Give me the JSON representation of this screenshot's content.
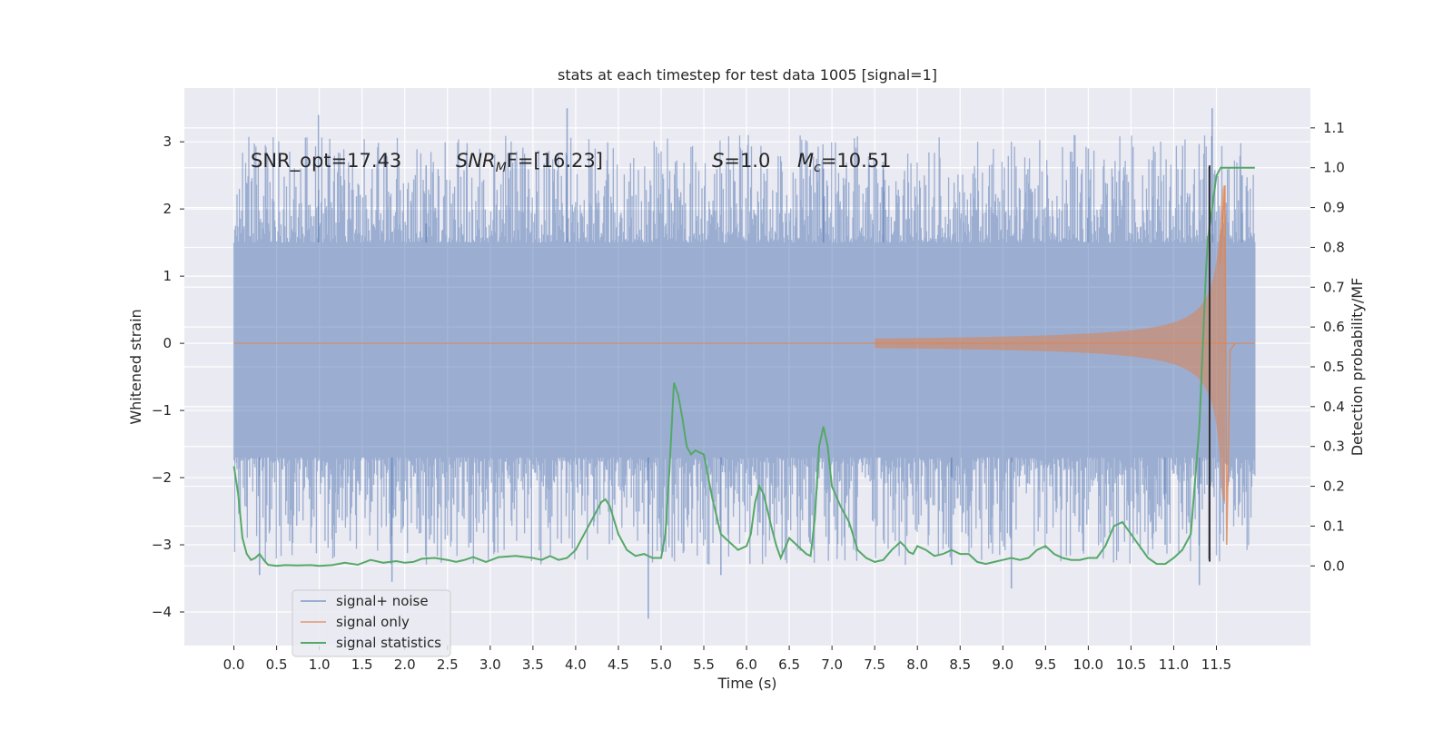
{
  "chart_data": {
    "type": "line",
    "title": "stats at each timestep for test data 1005 [signal=1]",
    "xlabel": "Time (s)",
    "ylabel": "Whitened strain",
    "ylabel_right": "Detection probability/MF",
    "xlim": [
      -0.58,
      12.6
    ],
    "ylim": [
      -4.5,
      3.8
    ],
    "ylim_right": [
      -0.2,
      1.2
    ],
    "x_ticks": [
      "0.0",
      "0.5",
      "1.0",
      "1.5",
      "2.0",
      "2.5",
      "3.0",
      "3.5",
      "4.0",
      "4.5",
      "5.0",
      "5.5",
      "6.0",
      "6.5",
      "7.0",
      "7.5",
      "8.0",
      "8.5",
      "9.0",
      "9.5",
      "10.0",
      "10.5",
      "11.0",
      "11.5"
    ],
    "y_ticks_left": [
      "−4",
      "−3",
      "−2",
      "−1",
      "0",
      "1",
      "2",
      "3"
    ],
    "y_ticks_right": [
      "0.0",
      "0.1",
      "0.2",
      "0.3",
      "0.4",
      "0.5",
      "0.6",
      "0.7",
      "0.8",
      "0.9",
      "1.0",
      "1.1"
    ],
    "grid": true,
    "legend_position": "lower-left",
    "colors": {
      "background": "#eaeaf2",
      "grid": "#ffffff",
      "signal_noise": "#4c72b0",
      "signal_only": "#dd8452",
      "statistics": "#55a868",
      "trigger_line": "#333333"
    },
    "annotations": {
      "snr_opt": "SNR_opt=17.43",
      "snr_mf_name": "SNR",
      "snr_mf_sub": "M",
      "snr_mf_rest": "F=[16.23]",
      "s_name": "S",
      "s_value": "=1.0",
      "mc_name": "M",
      "mc_sub": "c",
      "mc_value": "=10.51"
    },
    "series": [
      {
        "name": "signal+ noise",
        "axis": "left",
        "kind": "noise-band",
        "x_range": [
          0.0,
          11.95
        ],
        "core": [
          -1.7,
          1.5
        ],
        "peaks": [
          {
            "x": 0.99,
            "y": 3.4
          },
          {
            "x": 3.9,
            "y": 3.5
          },
          {
            "x": 11.45,
            "y": 3.5
          },
          {
            "x": 11.8,
            "y": 2.5
          },
          {
            "x": 2.25,
            "y": 2.65
          },
          {
            "x": 7.6,
            "y": 2.7
          },
          {
            "x": 10.0,
            "y": 2.9
          },
          {
            "x": 6.9,
            "y": 2.6
          }
        ],
        "troughs": [
          {
            "x": 1.85,
            "y": -3.55
          },
          {
            "x": 4.85,
            "y": -4.1
          },
          {
            "x": 9.1,
            "y": -3.65
          },
          {
            "x": 11.3,
            "y": -3.6
          },
          {
            "x": 0.3,
            "y": -3.45
          },
          {
            "x": 5.7,
            "y": -3.45
          },
          {
            "x": 8.4,
            "y": -3.3
          },
          {
            "x": 10.9,
            "y": -3.0
          }
        ]
      },
      {
        "name": "signal only",
        "axis": "left",
        "kind": "chirp",
        "merger_time": 11.62,
        "envelope_start": 7.5,
        "peak_amplitude": 2.35,
        "trough_amplitude": -3.0
      },
      {
        "name": "signal statistics",
        "axis": "right",
        "x": [
          0.0,
          0.05,
          0.1,
          0.15,
          0.2,
          0.25,
          0.3,
          0.35,
          0.4,
          0.5,
          0.6,
          0.75,
          0.9,
          1.0,
          1.15,
          1.3,
          1.45,
          1.6,
          1.75,
          1.9,
          2.0,
          2.1,
          2.2,
          2.35,
          2.5,
          2.6,
          2.7,
          2.8,
          2.95,
          3.1,
          3.3,
          3.5,
          3.6,
          3.7,
          3.8,
          3.9,
          4.0,
          4.1,
          4.2,
          4.3,
          4.35,
          4.4,
          4.5,
          4.6,
          4.7,
          4.8,
          4.9,
          5.0,
          5.05,
          5.1,
          5.15,
          5.2,
          5.25,
          5.3,
          5.35,
          5.4,
          5.5,
          5.6,
          5.7,
          5.8,
          5.9,
          6.0,
          6.05,
          6.1,
          6.15,
          6.2,
          6.3,
          6.35,
          6.4,
          6.5,
          6.6,
          6.7,
          6.75,
          6.8,
          6.85,
          6.9,
          6.95,
          7.0,
          7.1,
          7.2,
          7.3,
          7.4,
          7.5,
          7.6,
          7.7,
          7.8,
          7.85,
          7.9,
          7.95,
          8.0,
          8.1,
          8.2,
          8.3,
          8.4,
          8.5,
          8.6,
          8.7,
          8.8,
          8.9,
          9.0,
          9.1,
          9.2,
          9.3,
          9.4,
          9.5,
          9.6,
          9.7,
          9.8,
          9.9,
          10.0,
          10.1,
          10.2,
          10.3,
          10.4,
          10.5,
          10.6,
          10.7,
          10.8,
          10.9,
          11.0,
          11.1,
          11.2,
          11.3,
          11.35,
          11.38,
          11.4,
          11.45,
          11.5,
          11.55,
          11.6,
          11.7,
          11.8,
          11.9,
          11.95
        ],
        "y": [
          0.25,
          0.18,
          0.07,
          0.03,
          0.015,
          0.02,
          0.03,
          0.015,
          0.003,
          0.0,
          0.002,
          0.001,
          0.002,
          0.0,
          0.002,
          0.008,
          0.003,
          0.015,
          0.008,
          0.012,
          0.008,
          0.01,
          0.018,
          0.02,
          0.015,
          0.01,
          0.015,
          0.022,
          0.01,
          0.022,
          0.025,
          0.02,
          0.015,
          0.025,
          0.015,
          0.02,
          0.04,
          0.08,
          0.12,
          0.16,
          0.167,
          0.15,
          0.08,
          0.04,
          0.025,
          0.03,
          0.02,
          0.02,
          0.08,
          0.25,
          0.46,
          0.43,
          0.37,
          0.3,
          0.28,
          0.29,
          0.28,
          0.17,
          0.08,
          0.06,
          0.04,
          0.05,
          0.08,
          0.16,
          0.2,
          0.18,
          0.09,
          0.05,
          0.02,
          0.07,
          0.05,
          0.03,
          0.025,
          0.12,
          0.3,
          0.35,
          0.3,
          0.2,
          0.15,
          0.11,
          0.04,
          0.02,
          0.01,
          0.015,
          0.04,
          0.06,
          0.05,
          0.035,
          0.03,
          0.05,
          0.04,
          0.025,
          0.03,
          0.04,
          0.03,
          0.03,
          0.01,
          0.005,
          0.01,
          0.015,
          0.02,
          0.015,
          0.02,
          0.04,
          0.05,
          0.03,
          0.02,
          0.015,
          0.015,
          0.02,
          0.02,
          0.05,
          0.1,
          0.11,
          0.08,
          0.05,
          0.02,
          0.005,
          0.005,
          0.02,
          0.04,
          0.08,
          0.35,
          0.6,
          0.75,
          0.82,
          0.9,
          0.98,
          1.0,
          1.0,
          1.0,
          1.0,
          1.0,
          1.0
        ]
      }
    ],
    "trigger_marker": {
      "x": 11.42,
      "y_from": -3.25,
      "y_to": 2.65
    }
  }
}
